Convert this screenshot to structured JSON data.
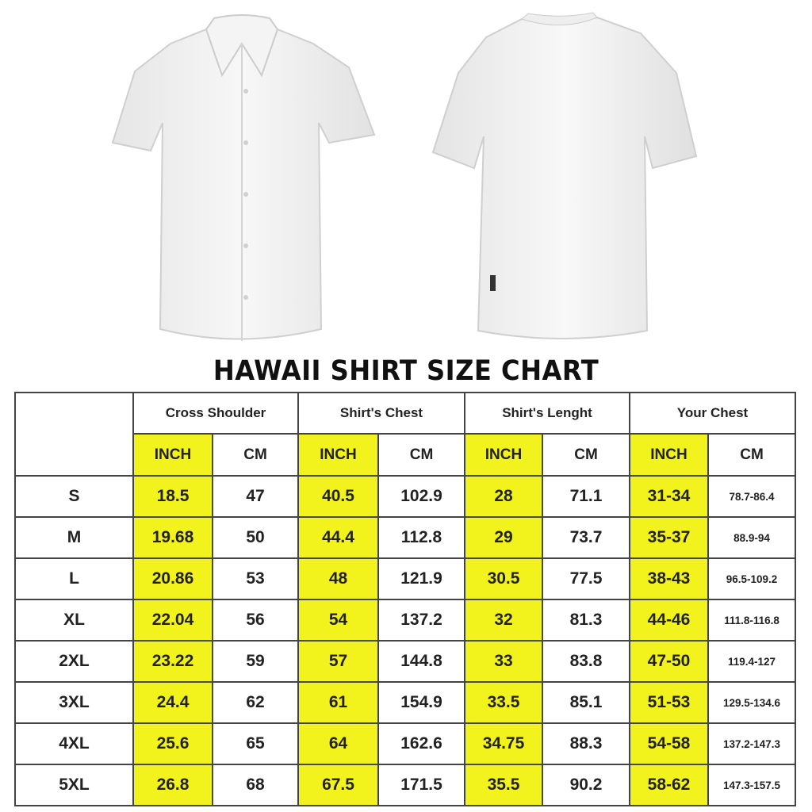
{
  "title": "HAWAII SHIRT SIZE CHART",
  "colors": {
    "highlight": "#f2f21c",
    "border": "#444444"
  },
  "images": {
    "front": "white-short-sleeve-shirt-front",
    "back": "white-short-sleeve-shirt-back"
  },
  "table": {
    "groups": [
      "Cross Shoulder",
      "Shirt's Chest",
      "Shirt's Lenght",
      "Your Chest"
    ],
    "units": [
      "INCH",
      "CM",
      "INCH",
      "CM",
      "INCH",
      "CM",
      "INCH",
      "CM"
    ],
    "rows": [
      {
        "size": "S",
        "values": [
          "18.5",
          "47",
          "40.5",
          "102.9",
          "28",
          "71.1",
          "31-34",
          "78.7-86.4"
        ]
      },
      {
        "size": "M",
        "values": [
          "19.68",
          "50",
          "44.4",
          "112.8",
          "29",
          "73.7",
          "35-37",
          "88.9-94"
        ]
      },
      {
        "size": "L",
        "values": [
          "20.86",
          "53",
          "48",
          "121.9",
          "30.5",
          "77.5",
          "38-43",
          "96.5-109.2"
        ]
      },
      {
        "size": "XL",
        "values": [
          "22.04",
          "56",
          "54",
          "137.2",
          "32",
          "81.3",
          "44-46",
          "111.8-116.8"
        ]
      },
      {
        "size": "2XL",
        "values": [
          "23.22",
          "59",
          "57",
          "144.8",
          "33",
          "83.8",
          "47-50",
          "119.4-127"
        ]
      },
      {
        "size": "3XL",
        "values": [
          "24.4",
          "62",
          "61",
          "154.9",
          "33.5",
          "85.1",
          "51-53",
          "129.5-134.6"
        ]
      },
      {
        "size": "4XL",
        "values": [
          "25.6",
          "65",
          "64",
          "162.6",
          "34.75",
          "88.3",
          "54-58",
          "137.2-147.3"
        ]
      },
      {
        "size": "5XL",
        "values": [
          "26.8",
          "68",
          "67.5",
          "171.5",
          "35.5",
          "90.2",
          "58-62",
          "147.3-157.5"
        ]
      }
    ]
  }
}
